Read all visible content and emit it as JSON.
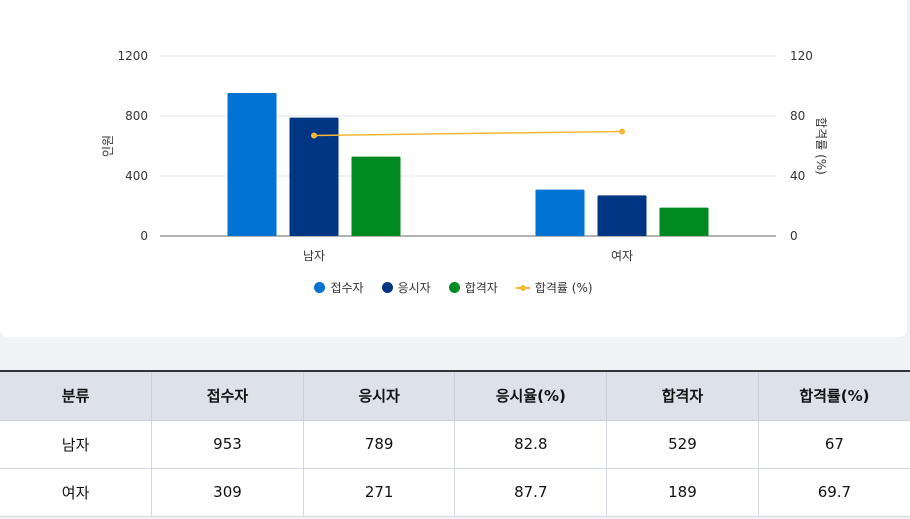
{
  "chart_data": {
    "type": "bar",
    "categories": [
      "남자",
      "여자"
    ],
    "series": [
      {
        "name": "접수자",
        "type": "bar",
        "axis": "left",
        "color": "#0073d3",
        "values": [
          953,
          309
        ]
      },
      {
        "name": "응시자",
        "type": "bar",
        "axis": "left",
        "color": "#003683",
        "values": [
          789,
          271
        ]
      },
      {
        "name": "합격자",
        "type": "bar",
        "axis": "left",
        "color": "#008b22",
        "values": [
          529,
          189
        ]
      },
      {
        "name": "합격률 (%)",
        "type": "line",
        "axis": "right",
        "color": "#f7b733",
        "values": [
          67,
          69.7
        ]
      }
    ],
    "ylabel": "인원",
    "y2label": "합격률 (%)",
    "ylim": [
      0,
      1200
    ],
    "y2lim": [
      0,
      120
    ],
    "yticks": [
      "0",
      "400",
      "800",
      "1200"
    ],
    "y2ticks": [
      "0",
      "40",
      "80",
      "120"
    ],
    "grid": true,
    "legend": "bottom"
  },
  "table": {
    "headers": [
      "분류",
      "접수자",
      "응시자",
      "응시율(%)",
      "합격자",
      "합격률(%)"
    ],
    "rows": [
      [
        "남자",
        "953",
        "789",
        "82.8",
        "529",
        "67"
      ],
      [
        "여자",
        "309",
        "271",
        "87.7",
        "189",
        "69.7"
      ]
    ]
  }
}
